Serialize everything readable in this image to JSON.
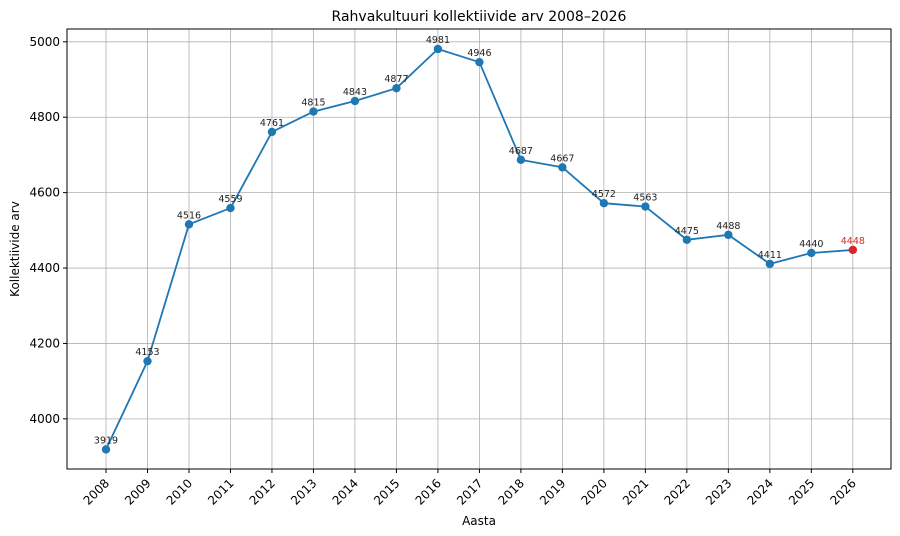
{
  "chart_data": {
    "type": "line",
    "title": "Rahvakultuuri kollektiivide arv 2008–2026",
    "xlabel": "Aasta",
    "ylabel": "Kollektiivide arv",
    "x": [
      "2008",
      "2009",
      "2010",
      "2011",
      "2012",
      "2013",
      "2014",
      "2015",
      "2016",
      "2017",
      "2018",
      "2019",
      "2020",
      "2021",
      "2022",
      "2023",
      "2024",
      "2025",
      "2026"
    ],
    "values": [
      3919,
      4153,
      4516,
      4559,
      4761,
      4815,
      4843,
      4877,
      4981,
      4946,
      4687,
      4667,
      4572,
      4563,
      4475,
      4488,
      4411,
      4440,
      4448
    ],
    "highlight_index": 18,
    "yticks": [
      4000,
      4200,
      4400,
      4600,
      4800,
      5000
    ],
    "ylim": [
      3867,
      5034
    ],
    "grid": true,
    "colors": {
      "line": "#1f77b4",
      "highlight": "#d62728"
    }
  }
}
